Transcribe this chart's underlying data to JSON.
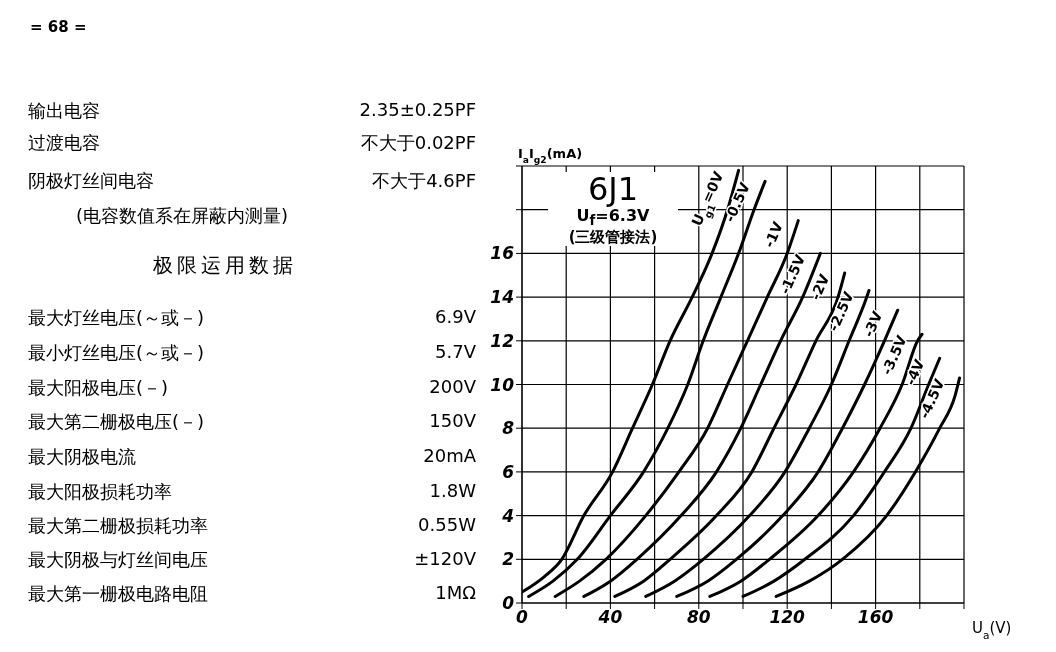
{
  "chart_data": {
    "type": "line",
    "title": "6J1",
    "subtitle": "U$_{f}$=6.3V",
    "xlabel": "U$_{a}$(V)",
    "ylabel": "I$_{a}$I$_{g2}$(mA)",
    "annotations": [
      "= 68 =",
      "输出电容",
      "2.35±0.25PF",
      "过渡电容",
      "不大于0.02PF",
      "阴极灯丝间电容",
      "不大于4.6PF",
      "(电容数值系在屏蔽内测量)",
      "极限运用数据",
      "最大灯丝电压(～或－)",
      "6.9V",
      "最小灯丝电压(～或－)",
      "5.7V",
      "最大阳极电压(－)",
      "200V",
      "最大第二栅极电压(－)",
      "150V",
      "最大阴极电流",
      "20mA",
      "最大阳极损耗功率",
      "1.8W",
      "最大第二栅极损耗功率",
      "0.55W",
      "最大阴极与灯丝间电压",
      "±120V",
      "最大第一栅极电路电阻",
      "1MΩ",
      "(三级管接法)"
    ],
    "xlim": [
      0,
      200
    ],
    "xticks": [
      0,
      {
        "value": 20,
        "label": null
      },
      40,
      {
        "value": 60,
        "label": null
      },
      80,
      {
        "value": 100,
        "label": null
      },
      120,
      {
        "value": 140,
        "label": null
      },
      160,
      {
        "value": 180,
        "label": null
      },
      {
        "value": 200,
        "label": null
      }
    ],
    "ylim": [
      0,
      20
    ],
    "yticks": [
      0,
      2,
      4,
      6,
      8,
      10,
      12,
      14,
      16,
      {
        "value": 18,
        "label": null
      },
      {
        "value": 20,
        "label": null
      }
    ],
    "grid": true,
    "legend": false,
    "marker": "none",
    "line_style": "solid",
    "series": [
      {
        "name": "U$_{g1}$=0V",
        "color": "#000000",
        "x": [
          0,
          10,
          18,
          28,
          41,
          50,
          59,
          67,
          77,
          86,
          93,
          98
        ],
        "values": [
          0.5,
          1.2,
          2,
          4,
          6,
          8,
          10,
          12,
          14,
          16,
          18,
          19.8
        ]
      },
      {
        "name": "-0.5V",
        "color": "#000000",
        "x": [
          3,
          14,
          25,
          40,
          55,
          66,
          75,
          82,
          90,
          98,
          105,
          110
        ],
        "values": [
          0.3,
          1,
          2,
          4,
          6,
          8,
          10,
          12,
          14,
          16,
          18,
          19.3
        ]
      },
      {
        "name": "-1V",
        "color": "#000000",
        "x": [
          15,
          26,
          38,
          56,
          71,
          84,
          93,
          102,
          111,
          120,
          125
        ],
        "values": [
          0.3,
          1,
          2,
          4,
          6,
          8,
          10,
          12,
          14,
          16,
          17.5
        ]
      },
      {
        "name": "-1.5V",
        "color": "#000000",
        "x": [
          28,
          40,
          52,
          72,
          88,
          99,
          108,
          117,
          127,
          135
        ],
        "values": [
          0.3,
          1,
          2,
          4,
          6,
          8,
          10,
          12,
          14,
          16
        ]
      },
      {
        "name": "-2V",
        "color": "#000000",
        "x": [
          42,
          55,
          67,
          88,
          104,
          114,
          124,
          133,
          143,
          146
        ],
        "values": [
          0.3,
          1,
          2,
          4,
          6,
          8,
          10,
          12,
          14,
          15.1
        ]
      },
      {
        "name": "-2.5V",
        "color": "#000000",
        "x": [
          56,
          69,
          82,
          103,
          119,
          130,
          140,
          148,
          156,
          157
        ],
        "values": [
          0.3,
          1,
          2,
          4,
          6,
          8,
          10,
          12,
          14,
          14.3
        ]
      },
      {
        "name": "-3V",
        "color": "#000000",
        "x": [
          70,
          84,
          97,
          118,
          134,
          145,
          155,
          164,
          170
        ],
        "values": [
          0.3,
          1,
          2,
          4,
          6,
          8,
          10,
          12,
          13.4
        ]
      },
      {
        "name": "-3.5V",
        "color": "#000000",
        "x": [
          85,
          99,
          112,
          134,
          150,
          162,
          172,
          179,
          181
        ],
        "values": [
          0.3,
          1,
          2,
          4,
          6,
          8,
          10,
          12,
          12.3
        ]
      },
      {
        "name": "-4V",
        "color": "#000000",
        "x": [
          100,
          114,
          128,
          150,
          164,
          176,
          184,
          189
        ],
        "values": [
          0.3,
          1,
          2,
          4,
          6,
          8,
          10,
          11.2
        ]
      },
      {
        "name": "-4.5V",
        "color": "#000000",
        "x": [
          115,
          130,
          145,
          165,
          178,
          189,
          196,
          198
        ],
        "values": [
          0.3,
          1,
          2,
          4,
          6,
          8,
          9.5,
          10.3
        ]
      }
    ]
  }
}
